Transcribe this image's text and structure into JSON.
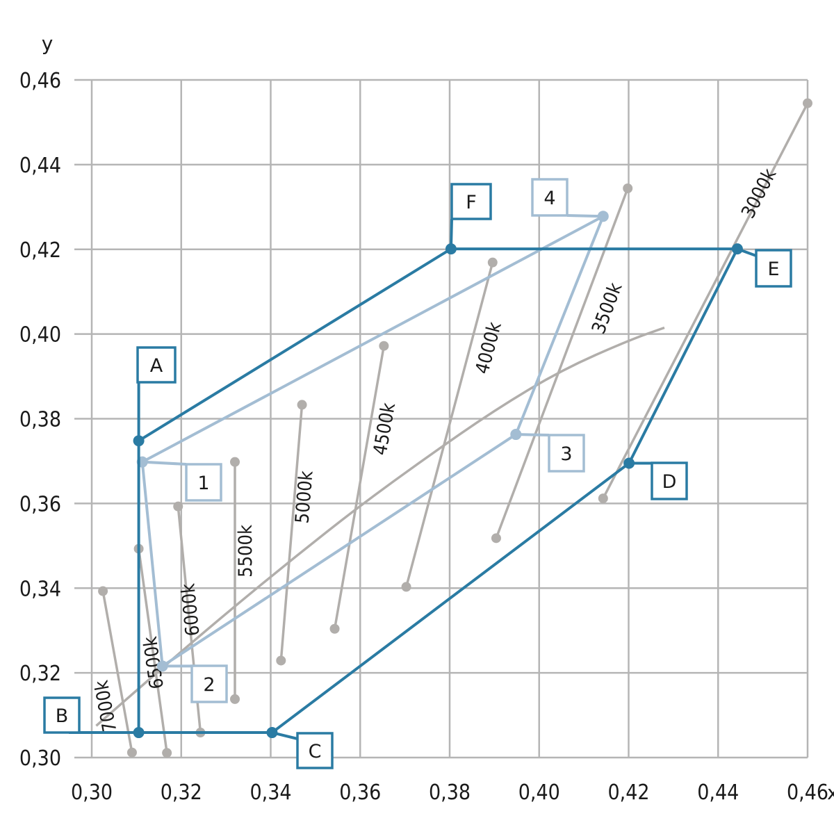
{
  "chart_data": {
    "type": "line",
    "xlabel": "x",
    "ylabel": "y",
    "xlim": [
      0.3,
      0.46
    ],
    "ylim": [
      0.3,
      0.46
    ],
    "x_ticks": [
      "0,30",
      "0,32",
      "0,34",
      "0,36",
      "0,38",
      "0,40",
      "0,42",
      "0,44",
      "0,46"
    ],
    "y_ticks": [
      "0,30",
      "0,32",
      "0,34",
      "0,36",
      "0,38",
      "0,40",
      "0,42",
      "0,44",
      "0,46"
    ],
    "grid": true,
    "colors": {
      "grid": "#b5b5b5",
      "outer": "#2a7ba3",
      "inner": "#a3bdd3",
      "isotherm": "#b1aeab",
      "point": "#b1aeab"
    },
    "planckian_locus": [
      [
        0.301,
        0.3075
      ],
      [
        0.315,
        0.3205
      ],
      [
        0.33,
        0.334
      ],
      [
        0.345,
        0.347
      ],
      [
        0.36,
        0.3595
      ],
      [
        0.375,
        0.371
      ],
      [
        0.39,
        0.382
      ],
      [
        0.405,
        0.3915
      ],
      [
        0.42,
        0.3985
      ],
      [
        0.428,
        0.4015
      ]
    ],
    "isotherms": [
      {
        "label": "7000k",
        "from": [
          0.3025,
          0.3393
        ],
        "to": [
          0.309,
          0.3012
        ]
      },
      {
        "label": "6500k",
        "from": [
          0.3105,
          0.3493
        ],
        "to": [
          0.3168,
          0.3011
        ]
      },
      {
        "label": "6000k",
        "from": [
          0.3193,
          0.3593
        ],
        "to": [
          0.3243,
          0.3059
        ]
      },
      {
        "label": "5500k",
        "from": [
          0.332,
          0.3698
        ],
        "to": [
          0.332,
          0.3138
        ]
      },
      {
        "label": "5000k",
        "from": [
          0.347,
          0.3833
        ],
        "to": [
          0.3423,
          0.3229
        ]
      },
      {
        "label": "4500k",
        "from": [
          0.3653,
          0.3972
        ],
        "to": [
          0.3543,
          0.3304
        ]
      },
      {
        "label": "4000k",
        "from": [
          0.3896,
          0.4169
        ],
        "to": [
          0.3703,
          0.3403
        ]
      },
      {
        "label": "3500k",
        "from": [
          0.4198,
          0.4344
        ],
        "to": [
          0.3904,
          0.3518
        ]
      },
      {
        "label": "3000k",
        "from": [
          0.46,
          0.4545
        ],
        "to": [
          0.4143,
          0.3612
        ]
      }
    ],
    "outer_region": [
      {
        "label": "A",
        "x": 0.3105,
        "y": 0.3748
      },
      {
        "label": "B",
        "x": 0.3105,
        "y": 0.3059
      },
      {
        "label": "C",
        "x": 0.3403,
        "y": 0.3059
      },
      {
        "label": "D",
        "x": 0.4201,
        "y": 0.3695
      },
      {
        "label": "E",
        "x": 0.4443,
        "y": 0.4201
      },
      {
        "label": "F",
        "x": 0.3803,
        "y": 0.4201
      }
    ],
    "inner_region": [
      {
        "label": "1",
        "x": 0.3113,
        "y": 0.3698
      },
      {
        "label": "2",
        "x": 0.3158,
        "y": 0.3216
      },
      {
        "label": "3",
        "x": 0.3948,
        "y": 0.3763
      },
      {
        "label": "4",
        "x": 0.4143,
        "y": 0.4278
      }
    ]
  }
}
